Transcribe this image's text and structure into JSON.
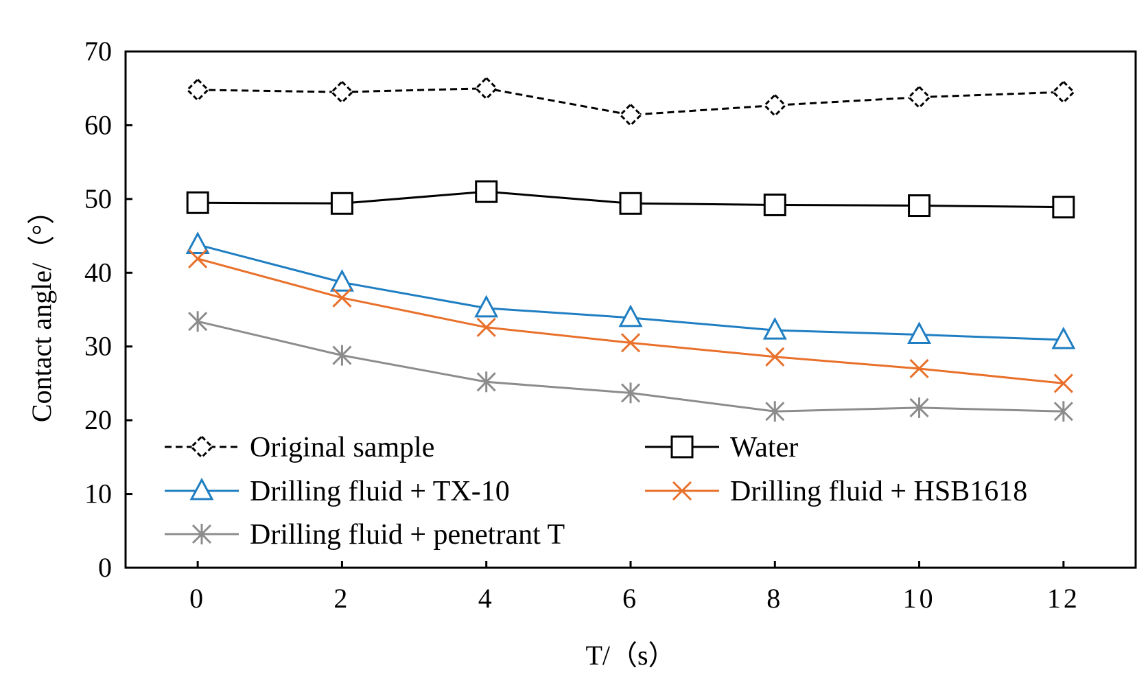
{
  "chart_data": {
    "type": "line",
    "title": "",
    "xlabel": "T/（s）",
    "ylabel": "Contact angle/（°）",
    "x": [
      0,
      2,
      4,
      6,
      8,
      10,
      12
    ],
    "xlim": [
      -1,
      13
    ],
    "ylim": [
      0,
      70
    ],
    "yticks": [
      0,
      10,
      20,
      30,
      40,
      50,
      60,
      70
    ],
    "xticks": [
      0,
      2,
      4,
      6,
      8,
      10,
      12
    ],
    "grid": false,
    "legend_position": "bottom-left, inside plot, two columns",
    "series": [
      {
        "name": "Original sample",
        "color": "#000000",
        "line": "dashed",
        "marker": "diamond",
        "values": [
          64.8,
          64.5,
          65.0,
          61.4,
          62.7,
          63.8,
          64.5
        ]
      },
      {
        "name": "Water",
        "color": "#000000",
        "line": "solid",
        "marker": "square",
        "values": [
          49.5,
          49.4,
          51.0,
          49.4,
          49.2,
          49.1,
          48.9
        ]
      },
      {
        "name": "Drilling fluid + TX-10",
        "color": "#1f7ec2",
        "line": "solid",
        "marker": "triangle",
        "values": [
          43.8,
          38.7,
          35.2,
          33.9,
          32.2,
          31.6,
          30.9
        ]
      },
      {
        "name": "Drilling fluid + HSB1618",
        "color": "#e8702a",
        "line": "solid",
        "marker": "x",
        "values": [
          41.9,
          36.6,
          32.6,
          30.5,
          28.6,
          27.0,
          25.0
        ]
      },
      {
        "name": "Drilling fluid + penetrant T",
        "color": "#8c8c8c",
        "line": "solid",
        "marker": "asterisk",
        "values": [
          33.4,
          28.8,
          25.2,
          23.7,
          21.2,
          21.7,
          21.2
        ]
      }
    ]
  }
}
